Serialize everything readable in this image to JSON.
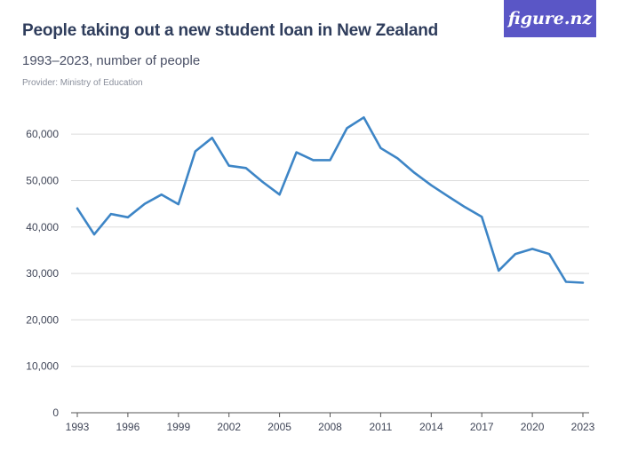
{
  "header": {
    "title": "People taking out a new student loan in New Zealand",
    "subtitle": "1993–2023, number of people",
    "provider": "Provider: Ministry of Education",
    "logo_text": "figure.nz"
  },
  "colors": {
    "line": "#3d85c6",
    "grid": "#dcdcdc",
    "axis": "#555555",
    "logo_bg": "#5a56c6"
  },
  "chart_data": {
    "type": "line",
    "title": "People taking out a new student loan in New Zealand",
    "subtitle": "1993–2023, number of people",
    "xlabel": "",
    "ylabel": "",
    "xlim": [
      1993,
      2023
    ],
    "ylim": [
      0,
      65000
    ],
    "grid": true,
    "x_ticks": [
      "1993",
      "1996",
      "1999",
      "2002",
      "2005",
      "2008",
      "2011",
      "2014",
      "2017",
      "2020",
      "2023"
    ],
    "y_ticks": [
      "0",
      "10,000",
      "20,000",
      "30,000",
      "40,000",
      "50,000",
      "60,000"
    ],
    "x": [
      1993,
      1994,
      1995,
      1996,
      1997,
      1998,
      1999,
      2000,
      2001,
      2002,
      2003,
      2004,
      2005,
      2006,
      2007,
      2008,
      2009,
      2010,
      2011,
      2012,
      2013,
      2014,
      2015,
      2016,
      2017,
      2018,
      2019,
      2020,
      2021,
      2022,
      2023
    ],
    "series": [
      {
        "values": [
          44000,
          38400,
          42800,
          42100,
          45000,
          47000,
          44900,
          56300,
          59200,
          53200,
          52700,
          49700,
          47000,
          56100,
          54400,
          54400,
          61300,
          63600,
          57000,
          54800,
          51700,
          49000,
          46600,
          44300,
          42200,
          30600,
          34200,
          35300,
          34200,
          28200,
          28000
        ]
      }
    ]
  }
}
